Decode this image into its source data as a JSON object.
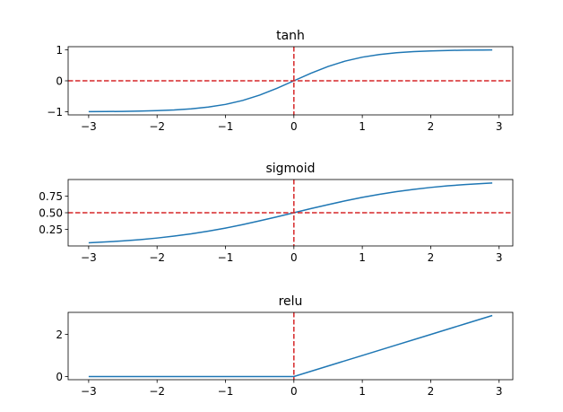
{
  "chart_data": [
    {
      "type": "line",
      "title": "tanh",
      "function": "tanh",
      "xlim": [
        -3.3,
        3.2
      ],
      "ylim": [
        -1.1,
        1.1
      ],
      "x": [
        -3.0,
        -2.75,
        -2.5,
        -2.25,
        -2.0,
        -1.75,
        -1.5,
        -1.25,
        -1.0,
        -0.75,
        -0.5,
        -0.25,
        0.0,
        0.25,
        0.5,
        0.75,
        1.0,
        1.25,
        1.5,
        1.75,
        2.0,
        2.25,
        2.5,
        2.75,
        2.9
      ],
      "y": [
        -0.995,
        -0.992,
        -0.987,
        -0.978,
        -0.964,
        -0.941,
        -0.905,
        -0.848,
        -0.762,
        -0.635,
        -0.462,
        -0.245,
        0.0,
        0.245,
        0.462,
        0.635,
        0.762,
        0.848,
        0.905,
        0.941,
        0.964,
        0.978,
        0.987,
        0.992,
        0.994
      ],
      "xticks": [
        -3,
        -2,
        -1,
        0,
        1,
        2,
        3
      ],
      "xtick_labels": [
        "−3",
        "−2",
        "−1",
        "0",
        "1",
        "2",
        "3"
      ],
      "yticks": [
        -1,
        0,
        1
      ],
      "ytick_labels": [
        "−1",
        "0",
        "1"
      ],
      "ref_hline": 0,
      "ref_vline": 0,
      "line_color": "#1f77b4",
      "ref_color": "#d62728"
    },
    {
      "type": "line",
      "title": "sigmoid",
      "function": "sigmoid",
      "xlim": [
        -3.3,
        3.2
      ],
      "ylim": [
        0.0,
        1.0
      ],
      "x": [
        -3.0,
        -2.75,
        -2.5,
        -2.25,
        -2.0,
        -1.75,
        -1.5,
        -1.25,
        -1.0,
        -0.75,
        -0.5,
        -0.25,
        0.0,
        0.25,
        0.5,
        0.75,
        1.0,
        1.25,
        1.5,
        1.75,
        2.0,
        2.25,
        2.5,
        2.75,
        2.9
      ],
      "y": [
        0.047,
        0.06,
        0.076,
        0.095,
        0.119,
        0.148,
        0.182,
        0.223,
        0.269,
        0.321,
        0.378,
        0.438,
        0.5,
        0.562,
        0.622,
        0.679,
        0.731,
        0.777,
        0.818,
        0.852,
        0.881,
        0.905,
        0.924,
        0.94,
        0.948
      ],
      "xticks": [
        -3,
        -2,
        -1,
        0,
        1,
        2,
        3
      ],
      "xtick_labels": [
        "−3",
        "−2",
        "−1",
        "0",
        "1",
        "2",
        "3"
      ],
      "yticks": [
        0.25,
        0.5,
        0.75
      ],
      "ytick_labels": [
        "0.25",
        "0.50",
        "0.75"
      ],
      "ref_hline": 0.5,
      "ref_vline": 0,
      "line_color": "#1f77b4",
      "ref_color": "#d62728"
    },
    {
      "type": "line",
      "title": "relu",
      "function": "relu",
      "xlim": [
        -3.3,
        3.2
      ],
      "ylim": [
        -0.15,
        3.05
      ],
      "x": [
        -3.0,
        -2.5,
        -2.0,
        -1.5,
        -1.0,
        -0.5,
        0.0,
        0.5,
        1.0,
        1.5,
        2.0,
        2.5,
        2.9
      ],
      "y": [
        0.0,
        0.0,
        0.0,
        0.0,
        0.0,
        0.0,
        0.0,
        0.5,
        1.0,
        1.5,
        2.0,
        2.5,
        2.9
      ],
      "xticks": [
        -3,
        -2,
        -1,
        0,
        1,
        2,
        3
      ],
      "xtick_labels": [
        "−3",
        "−2",
        "−1",
        "0",
        "1",
        "2",
        "3"
      ],
      "yticks": [
        0,
        2
      ],
      "ytick_labels": [
        "0",
        "2"
      ],
      "ref_vline": 0,
      "line_color": "#1f77b4",
      "ref_color": "#d62728"
    }
  ]
}
